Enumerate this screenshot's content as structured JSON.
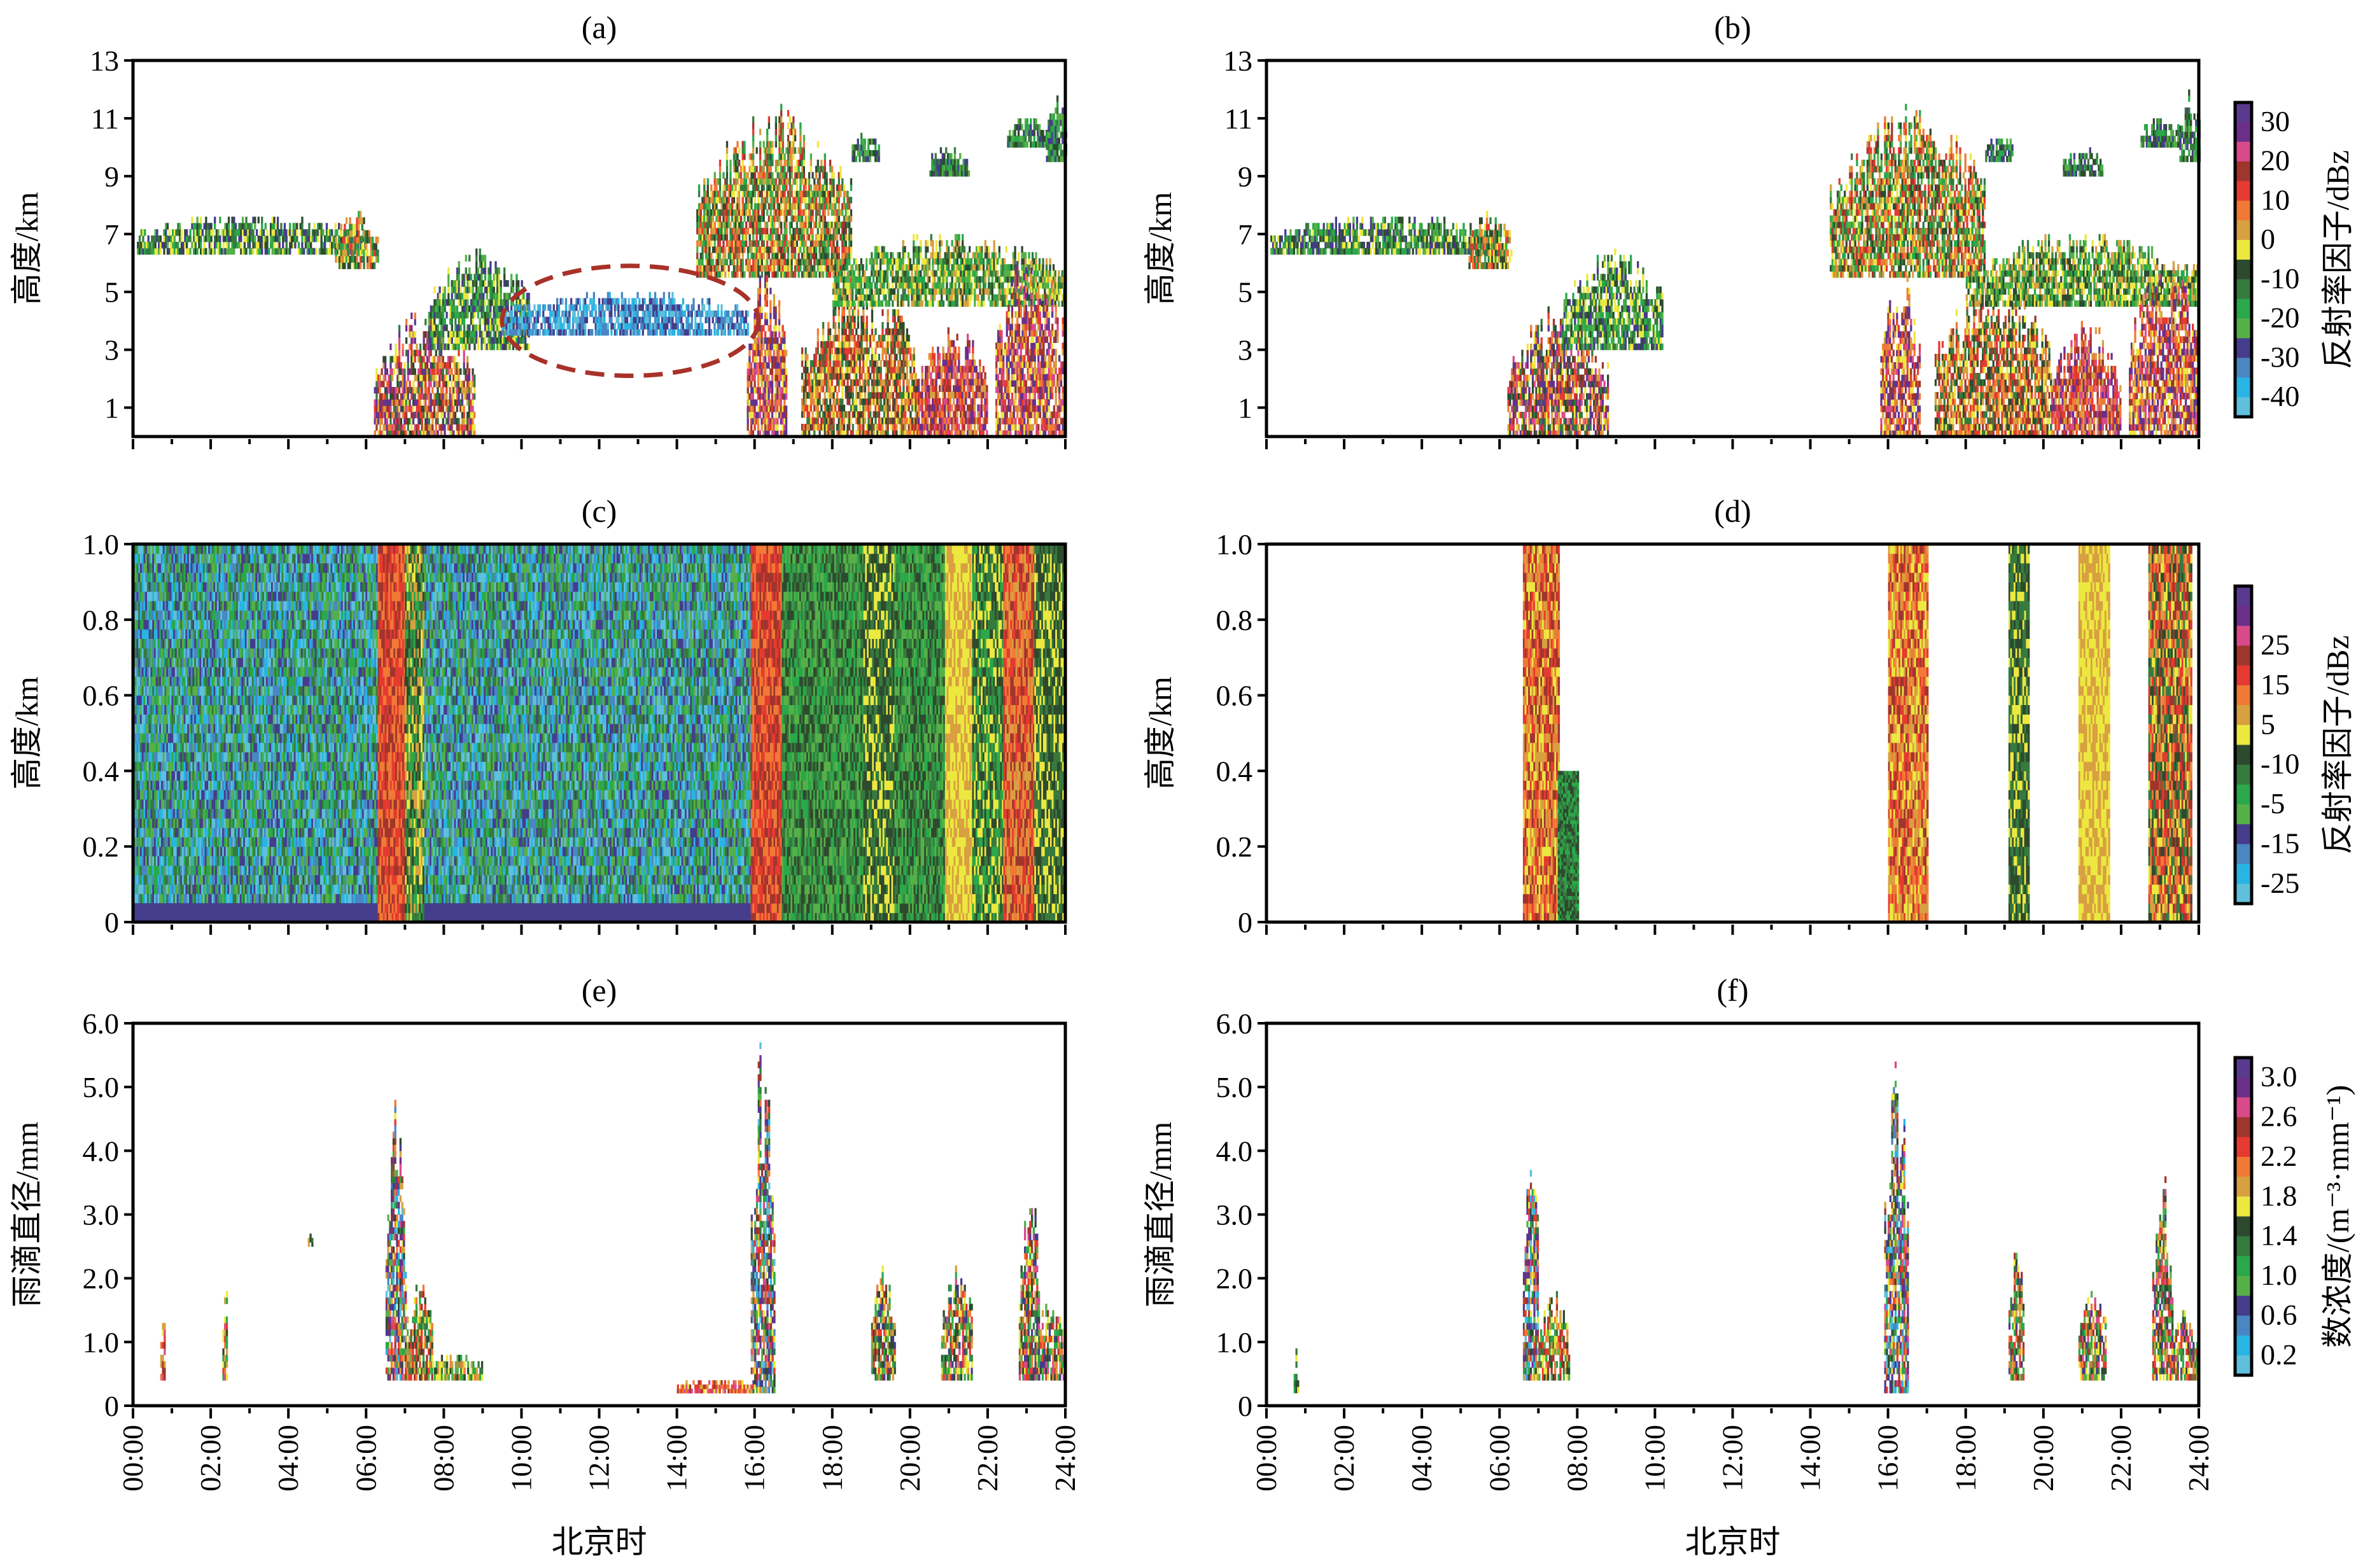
{
  "palette": [
    "#5ec0dc",
    "#28b4e4",
    "#4a86c4",
    "#463c8c",
    "#56b048",
    "#2aa84a",
    "#367a3e",
    "#2e4a2e",
    "#ece840",
    "#d8a040",
    "#f07a35",
    "#e53a30",
    "#a0352e",
    "#d84a8a",
    "#6b2f8a",
    "#5a3a8e"
  ],
  "chart_data": [
    {
      "id": "a",
      "type": "heatmap",
      "title": "(a)",
      "ylabel": "高度/km",
      "ylim": [
        0,
        13
      ],
      "yticks": [
        "1",
        "3",
        "5",
        "7",
        "9",
        "11",
        "13"
      ],
      "ytick_values": [
        1,
        3,
        5,
        7,
        9,
        11,
        13
      ],
      "xlim": [
        0,
        24
      ],
      "annotation": {
        "shape": "dashed-ellipse",
        "center_time_h": 12.8,
        "center_km": 4.0,
        "half_width_h": 3.3,
        "half_height_km": 1.9
      },
      "regions": [
        [
          0.1,
          6.0,
          6.3,
          7.6,
          3,
          8
        ],
        [
          5.2,
          6.3,
          5.8,
          7.8,
          5,
          11
        ],
        [
          6.2,
          8.8,
          0,
          4.5,
          6,
          15
        ],
        [
          7.6,
          10.2,
          3,
          6.5,
          3,
          8
        ],
        [
          9.5,
          15.8,
          3.5,
          5.0,
          0,
          3
        ],
        [
          14.5,
          18.5,
          5.5,
          11.5,
          4,
          12
        ],
        [
          15.8,
          16.8,
          0,
          6,
          8,
          15
        ],
        [
          17.2,
          20.2,
          0,
          5.5,
          6,
          12
        ],
        [
          18,
          24,
          4.5,
          7,
          4,
          9
        ],
        [
          20.2,
          22,
          0,
          4,
          9,
          14
        ],
        [
          22.2,
          24,
          0,
          6.5,
          8,
          15
        ],
        [
          18.5,
          19.2,
          9.5,
          10.5,
          3,
          7
        ],
        [
          20.5,
          21.5,
          9,
          10,
          3,
          7
        ],
        [
          22.5,
          23.5,
          10,
          11,
          3,
          7
        ],
        [
          23.5,
          24,
          9.5,
          12,
          3,
          7
        ]
      ]
    },
    {
      "id": "b",
      "type": "heatmap",
      "title": "(b)",
      "ylabel": "高度/km",
      "ylim": [
        0,
        13
      ],
      "yticks": [
        "1",
        "3",
        "5",
        "7",
        "9",
        "11",
        "13"
      ],
      "ytick_values": [
        1,
        3,
        5,
        7,
        9,
        11,
        13
      ],
      "xlim": [
        0,
        24
      ],
      "regions": [
        [
          0.1,
          6.0,
          6.3,
          7.6,
          3,
          8
        ],
        [
          5.2,
          6.3,
          5.8,
          7.8,
          5,
          11
        ],
        [
          6.2,
          8.8,
          0,
          4.5,
          6,
          15
        ],
        [
          7.6,
          10.2,
          3,
          6.5,
          3,
          8
        ],
        [
          14.5,
          18.5,
          5.5,
          11.5,
          4,
          12
        ],
        [
          15.8,
          16.8,
          0,
          6,
          8,
          15
        ],
        [
          17.2,
          20.2,
          0,
          5.5,
          6,
          12
        ],
        [
          18,
          24,
          4.5,
          7,
          4,
          9
        ],
        [
          20.2,
          22,
          0,
          4,
          9,
          14
        ],
        [
          22.2,
          24,
          0,
          6.5,
          8,
          15
        ],
        [
          18.5,
          19.2,
          9.5,
          10.5,
          3,
          7
        ],
        [
          20.5,
          21.5,
          9,
          10,
          3,
          7
        ],
        [
          22.5,
          23.5,
          10,
          11,
          3,
          7
        ],
        [
          23.5,
          24,
          9.5,
          12,
          3,
          7
        ]
      ]
    },
    {
      "id": "c",
      "type": "heatmap",
      "title": "(c)",
      "ylabel": "高度/km",
      "ylim": [
        0,
        1
      ],
      "yticks": [
        "0",
        "0.2",
        "0.4",
        "0.6",
        "0.8",
        "1.0"
      ],
      "ytick_values": [
        0,
        0.2,
        0.4,
        0.6,
        0.8,
        1.0
      ],
      "xlim": [
        0,
        24
      ],
      "regions": [
        [
          0,
          6.3,
          0,
          1,
          0,
          6
        ],
        [
          6.3,
          7.0,
          0,
          1,
          10,
          12
        ],
        [
          7.0,
          7.5,
          0,
          1,
          5,
          9
        ],
        [
          7.5,
          15.9,
          0,
          1,
          0,
          6
        ],
        [
          15.9,
          16.7,
          0,
          1,
          10,
          12
        ],
        [
          16.7,
          18.8,
          0,
          1,
          4,
          7
        ],
        [
          18.8,
          19.6,
          0,
          1,
          6,
          8
        ],
        [
          19.6,
          20.9,
          0,
          1,
          4,
          7
        ],
        [
          20.9,
          21.6,
          0,
          1,
          8,
          9
        ],
        [
          21.6,
          22.4,
          0,
          1,
          5,
          8
        ],
        [
          22.4,
          23.2,
          0,
          1,
          9,
          12
        ],
        [
          23.2,
          24,
          0,
          1,
          6,
          8
        ]
      ]
    },
    {
      "id": "d",
      "type": "heatmap",
      "title": "(d)",
      "ylabel": "高度/km",
      "ylim": [
        0,
        1
      ],
      "yticks": [
        "0",
        "0.2",
        "0.4",
        "0.6",
        "0.8",
        "1.0"
      ],
      "ytick_values": [
        0,
        0.2,
        0.4,
        0.6,
        0.8,
        1.0
      ],
      "xlim": [
        0,
        24
      ],
      "regions": [
        [
          6.6,
          7.5,
          0,
          1,
          8,
          12
        ],
        [
          7.5,
          8.0,
          0,
          0.4,
          5,
          7
        ],
        [
          16.0,
          17.0,
          0,
          1,
          8,
          12
        ],
        [
          19.1,
          19.6,
          0,
          1,
          6,
          8
        ],
        [
          20.9,
          21.7,
          0,
          1,
          8,
          9
        ],
        [
          22.7,
          23.8,
          0,
          1,
          6,
          12
        ]
      ]
    },
    {
      "id": "e",
      "type": "heatmap",
      "title": "(e)",
      "ylabel": "雨滴直径/mm",
      "ylim": [
        0,
        6
      ],
      "yticks": [
        "0",
        "1.0",
        "2.0",
        "3.0",
        "4.0",
        "5.0",
        "6.0"
      ],
      "ytick_values": [
        0,
        1,
        2,
        3,
        4,
        5,
        6
      ],
      "xlim": [
        0,
        24
      ],
      "regions": [
        [
          6.5,
          7.0,
          0.4,
          4.9,
          0,
          15
        ],
        [
          7.0,
          7.7,
          0.4,
          2.0,
          4,
          12
        ],
        [
          7.7,
          9.0,
          0.4,
          0.8,
          4,
          10
        ],
        [
          15.9,
          16.5,
          0.2,
          5.9,
          0,
          15
        ],
        [
          19.0,
          19.6,
          0.4,
          2.2,
          3,
          12
        ],
        [
          20.8,
          21.6,
          0.4,
          2.3,
          3,
          13
        ],
        [
          22.8,
          23.3,
          0.4,
          3.9,
          3,
          13
        ],
        [
          23.3,
          24,
          0.4,
          1.8,
          3,
          13
        ],
        [
          0.7,
          0.8,
          0.4,
          1.8,
          8,
          13
        ],
        [
          2.3,
          2.4,
          0.4,
          2.3,
          5,
          13
        ],
        [
          4.5,
          4.6,
          2.5,
          2.7,
          6,
          9
        ],
        [
          14,
          16,
          0.2,
          0.4,
          8,
          13
        ]
      ]
    },
    {
      "id": "f",
      "type": "heatmap",
      "title": "(f)",
      "ylabel": "雨滴直径/mm",
      "ylim": [
        0,
        6
      ],
      "yticks": [
        "0",
        "1.0",
        "2.0",
        "3.0",
        "4.0",
        "5.0",
        "6.0"
      ],
      "ytick_values": [
        0,
        1,
        2,
        3,
        4,
        5,
        6
      ],
      "xlim": [
        0,
        24
      ],
      "regions": [
        [
          6.6,
          7.0,
          0.4,
          4.3,
          0,
          15
        ],
        [
          7.0,
          7.8,
          0.4,
          1.8,
          4,
          12
        ],
        [
          15.9,
          16.5,
          0.2,
          5.9,
          0,
          15
        ],
        [
          19.1,
          19.5,
          0.4,
          2.7,
          3,
          12
        ],
        [
          20.9,
          21.6,
          0.4,
          2.0,
          3,
          13
        ],
        [
          22.8,
          23.3,
          0.4,
          3.8,
          3,
          13
        ],
        [
          23.3,
          24,
          0.4,
          1.5,
          3,
          13
        ],
        [
          0.7,
          0.8,
          0.2,
          0.9,
          5,
          8
        ]
      ]
    }
  ],
  "xticks": [
    "00:00",
    "02:00",
    "04:00",
    "06:00",
    "08:00",
    "10:00",
    "12:00",
    "14:00",
    "16:00",
    "18:00",
    "20:00",
    "22:00",
    "24:00"
  ],
  "xlabel": "北京时",
  "colorbars": [
    {
      "labels": [
        "30",
        "20",
        "10",
        "0",
        "-10",
        "-20",
        "-30",
        "-40"
      ],
      "title": "反射率因子/dBz"
    },
    {
      "labels": [
        "25",
        "15",
        "5",
        "-10",
        "-5",
        "-15",
        "-25"
      ],
      "title": "反射率因子/dBz"
    },
    {
      "labels": [
        "3.0",
        "2.6",
        "2.2",
        "1.8",
        "1.4",
        "1.0",
        "0.6",
        "0.2"
      ],
      "title": "数浓度/(m⁻³·mm⁻¹)"
    }
  ]
}
